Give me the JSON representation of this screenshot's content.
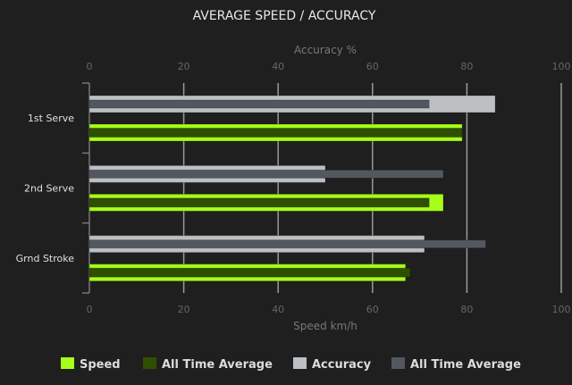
{
  "chart_data": {
    "type": "bar",
    "orientation": "horizontal",
    "title": "AVERAGE SPEED / ACCURACY",
    "categories": [
      "1st Serve",
      "2nd Serve",
      "Grnd Stroke"
    ],
    "top_axis": {
      "label": "Accuracy %",
      "range": [
        0,
        100
      ],
      "ticks": [
        "0",
        "20",
        "40",
        "60",
        "80",
        "100"
      ]
    },
    "bottom_axis": {
      "label": "Speed km/h",
      "range": [
        0,
        100
      ],
      "ticks": [
        "0",
        "20",
        "40",
        "60",
        "80",
        "100"
      ]
    },
    "grid": true,
    "legend_position": "bottom",
    "series": [
      {
        "name": "Speed",
        "axis": "bottom",
        "color": "#a6ff1a",
        "values": [
          79,
          75,
          67
        ]
      },
      {
        "name": "All Time Average",
        "axis": "bottom",
        "color": "#2f4f00",
        "values": [
          79,
          72,
          68
        ]
      },
      {
        "name": "Accuracy",
        "axis": "top",
        "color": "#bcc0c3",
        "values": [
          86,
          50,
          71
        ]
      },
      {
        "name": "All Time Average",
        "axis": "top",
        "color": "#535860",
        "values": [
          72,
          75,
          84
        ]
      }
    ]
  }
}
